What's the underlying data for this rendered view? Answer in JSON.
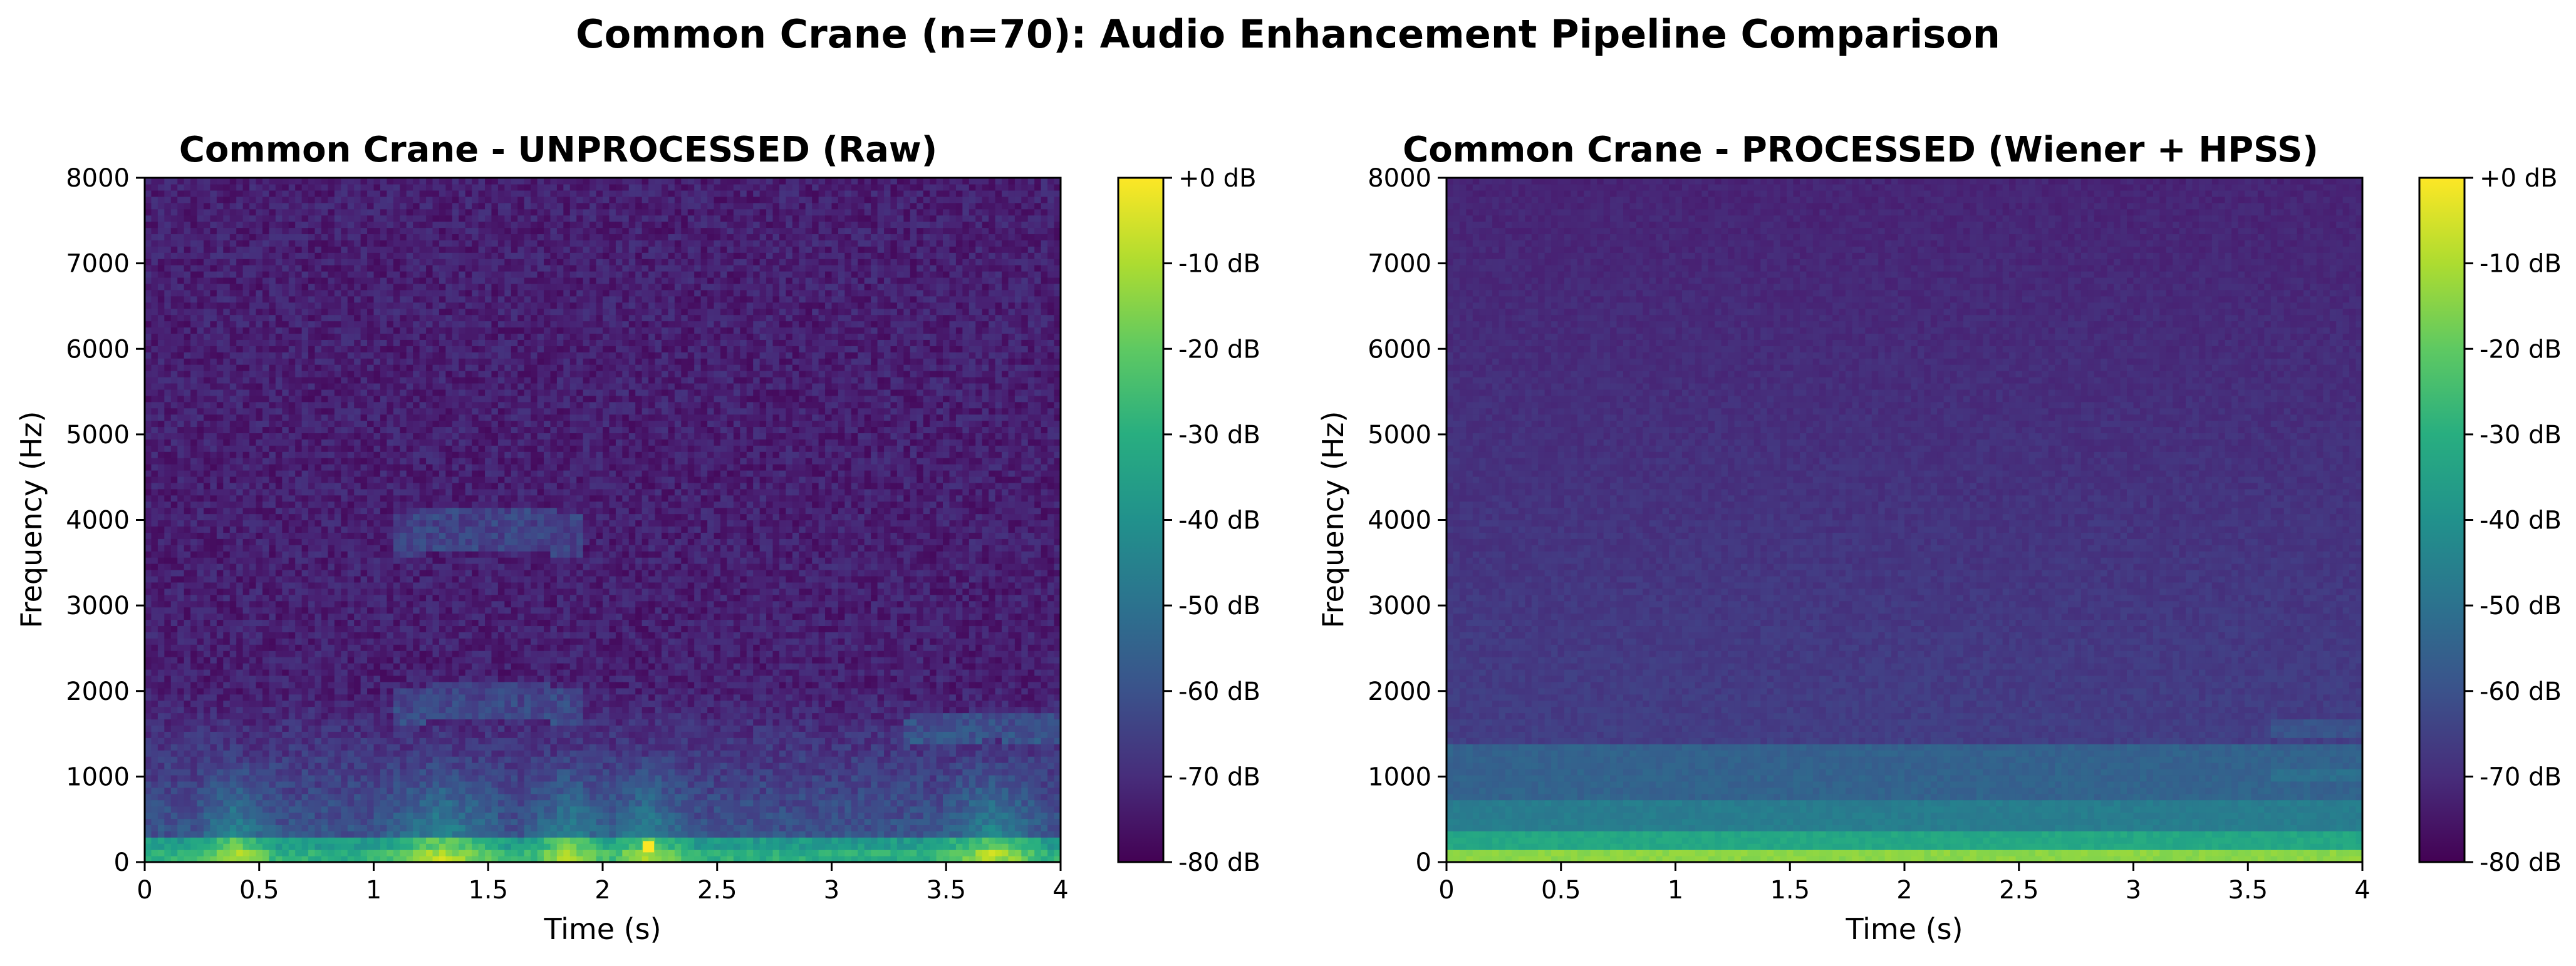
{
  "figure": {
    "suptitle": "Common Crane (n=70): Audio Enhancement Pipeline Comparison"
  },
  "chart_data": [
    {
      "type": "heatmap",
      "title": "Common Crane - UNPROCESSED (Raw)",
      "xlabel": "Time (s)",
      "ylabel": "Frequency (Hz)",
      "xlim": [
        0,
        4
      ],
      "ylim": [
        0,
        8000
      ],
      "xticks": [
        0,
        0.5,
        1,
        1.5,
        2,
        2.5,
        3,
        3.5,
        4
      ],
      "xtick_labels": [
        "0",
        "0.5",
        "1",
        "1.5",
        "2",
        "2.5",
        "3",
        "3.5",
        "4"
      ],
      "yticks": [
        0,
        1000,
        2000,
        3000,
        4000,
        5000,
        6000,
        7000,
        8000
      ],
      "ytick_labels": [
        "0",
        "1000",
        "2000",
        "3000",
        "4000",
        "5000",
        "6000",
        "7000",
        "8000"
      ],
      "colorbar": {
        "label": "",
        "range": [
          -80,
          0
        ],
        "ticks": [
          0,
          -10,
          -20,
          -30,
          -40,
          -50,
          -60,
          -70,
          -80
        ],
        "tick_labels": [
          "+0 dB",
          "-10 dB",
          "-20 dB",
          "-30 dB",
          "-40 dB",
          "-50 dB",
          "-60 dB",
          "-70 dB",
          "-80 dB"
        ],
        "colormap": "viridis"
      },
      "grid": false,
      "hotspot": {
        "time_s": 2.2,
        "freq_hz": 180,
        "level_db": 0
      }
    },
    {
      "type": "heatmap",
      "title": "Common Crane - PROCESSED (Wiener + HPSS)",
      "xlabel": "Time (s)",
      "ylabel": "Frequency (Hz)",
      "xlim": [
        0,
        4
      ],
      "ylim": [
        0,
        8000
      ],
      "xticks": [
        0,
        0.5,
        1,
        1.5,
        2,
        2.5,
        3,
        3.5,
        4
      ],
      "xtick_labels": [
        "0",
        "0.5",
        "1",
        "1.5",
        "2",
        "2.5",
        "3",
        "3.5",
        "4"
      ],
      "yticks": [
        0,
        1000,
        2000,
        3000,
        4000,
        5000,
        6000,
        7000,
        8000
      ],
      "ytick_labels": [
        "0",
        "1000",
        "2000",
        "3000",
        "4000",
        "5000",
        "6000",
        "7000",
        "8000"
      ],
      "colorbar": {
        "label": "",
        "range": [
          -80,
          0
        ],
        "ticks": [
          0,
          -10,
          -20,
          -30,
          -40,
          -50,
          -60,
          -70,
          -80
        ],
        "tick_labels": [
          "+0 dB",
          "-10 dB",
          "-20 dB",
          "-30 dB",
          "-40 dB",
          "-50 dB",
          "-60 dB",
          "-70 dB",
          "-80 dB"
        ],
        "colormap": "viridis"
      },
      "grid": false
    }
  ]
}
